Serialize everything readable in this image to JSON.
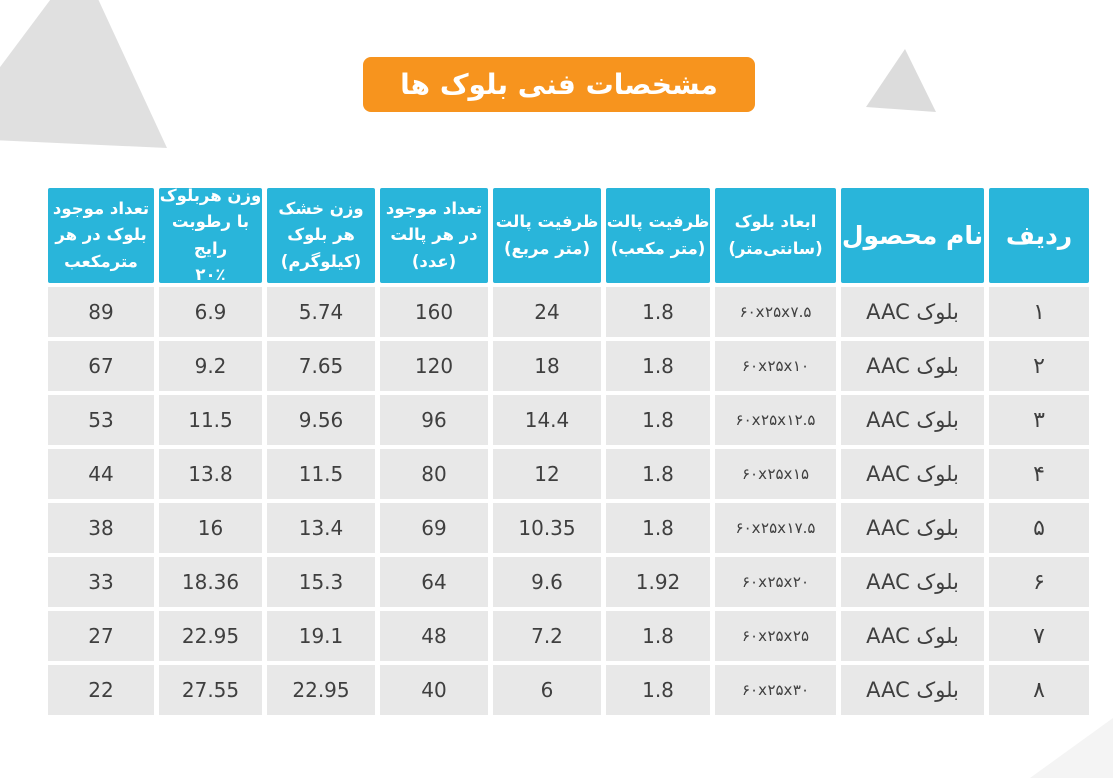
{
  "title": "مشخصات فنی بلوک ها",
  "colors": {
    "accent_orange": "#F7941E",
    "header_cyan": "#29B5DA",
    "cell_gray": "#E8E8E8",
    "triangle_gray": "#E0E0E0"
  },
  "table": {
    "headers": [
      {
        "key": "radif",
        "big": true,
        "lines": [
          "ردیف"
        ]
      },
      {
        "key": "name",
        "big": true,
        "lines": [
          "نام محصول"
        ]
      },
      {
        "key": "dims",
        "big": false,
        "lines": [
          "ابعاد بلوک",
          "(سانتی‌متر)"
        ]
      },
      {
        "key": "cap_m3",
        "big": false,
        "lines": [
          "ظرفیت پالت",
          "(متر مکعب)"
        ]
      },
      {
        "key": "cap_m2",
        "big": false,
        "lines": [
          "ظرفیت پالت",
          "(متر مربع)"
        ]
      },
      {
        "key": "per_pallet",
        "big": false,
        "lines": [
          "تعداد موجود",
          "در هر پالت",
          "(عدد)"
        ]
      },
      {
        "key": "dry_weight",
        "big": false,
        "lines": [
          "وزن خشک",
          "هر بلوک",
          "(کیلوگرم)"
        ]
      },
      {
        "key": "wet_weight",
        "big": false,
        "lines": [
          "وزن هربلوک",
          "با رطوبت رایج",
          "۲۰٪"
        ]
      },
      {
        "key": "per_m3",
        "big": false,
        "lines": [
          "تعداد موجود",
          "بلوک در هر",
          "مترمکعب"
        ]
      }
    ],
    "rows": [
      {
        "radif": "۱",
        "name": "بلوک AAC",
        "dims": "۶۰x۲۵x۷.۵",
        "cap_m3": "1.8",
        "cap_m2": "24",
        "per_pallet": "160",
        "dry_weight": "5.74",
        "wet_weight": "6.9",
        "per_m3": "89"
      },
      {
        "radif": "۲",
        "name": "بلوک AAC",
        "dims": "۶۰x۲۵x۱۰",
        "cap_m3": "1.8",
        "cap_m2": "18",
        "per_pallet": "120",
        "dry_weight": "7.65",
        "wet_weight": "9.2",
        "per_m3": "67"
      },
      {
        "radif": "۳",
        "name": "بلوک AAC",
        "dims": "۶۰x۲۵x۱۲.۵",
        "cap_m3": "1.8",
        "cap_m2": "14.4",
        "per_pallet": "96",
        "dry_weight": "9.56",
        "wet_weight": "11.5",
        "per_m3": "53"
      },
      {
        "radif": "۴",
        "name": "بلوک AAC",
        "dims": "۶۰x۲۵x۱۵",
        "cap_m3": "1.8",
        "cap_m2": "12",
        "per_pallet": "80",
        "dry_weight": "11.5",
        "wet_weight": "13.8",
        "per_m3": "44"
      },
      {
        "radif": "۵",
        "name": "بلوک AAC",
        "dims": "۶۰x۲۵x۱۷.۵",
        "cap_m3": "1.8",
        "cap_m2": "10.35",
        "per_pallet": "69",
        "dry_weight": "13.4",
        "wet_weight": "16",
        "per_m3": "38"
      },
      {
        "radif": "۶",
        "name": "بلوک AAC",
        "dims": "۶۰x۲۵x۲۰",
        "cap_m3": "1.92",
        "cap_m2": "9.6",
        "per_pallet": "64",
        "dry_weight": "15.3",
        "wet_weight": "18.36",
        "per_m3": "33"
      },
      {
        "radif": "۷",
        "name": "بلوک AAC",
        "dims": "۶۰x۲۵x۲۵",
        "cap_m3": "1.8",
        "cap_m2": "7.2",
        "per_pallet": "48",
        "dry_weight": "19.1",
        "wet_weight": "22.95",
        "per_m3": "27"
      },
      {
        "radif": "۸",
        "name": "بلوک AAC",
        "dims": "۶۰x۲۵x۳۰",
        "cap_m3": "1.8",
        "cap_m2": "6",
        "per_pallet": "40",
        "dry_weight": "22.95",
        "wet_weight": "27.55",
        "per_m3": "22"
      }
    ]
  }
}
